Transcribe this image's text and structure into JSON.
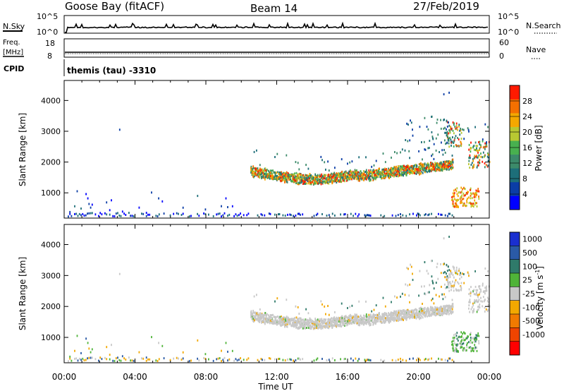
{
  "header": {
    "site": "Goose Bay (fitACF)",
    "beam": "Beam 14",
    "date": "27/Feb/2019"
  },
  "strips": {
    "nsky": {
      "label": "N.Sky",
      "tick_top": "10^5",
      "tick_bottom": "10^0",
      "right_label": "N.Search",
      "right_tick_top": "10^5",
      "right_tick_bottom": "10^0"
    },
    "freq": {
      "label_top": "Freq.",
      "label_unit": "[MHz]",
      "tick_top": "18",
      "tick_bottom": "8",
      "right_label": "Nave",
      "right_tick_top": "60",
      "right_tick_bottom": "0"
    },
    "cpid": {
      "label": "CPID",
      "value": "themis (tau) -3310"
    }
  },
  "colors": {
    "power": [
      "#0000ff",
      "#0b3da6",
      "#1d6e79",
      "#3c8a6a",
      "#48b04f",
      "#b8c832",
      "#f4a800",
      "#f47000",
      "#ff1a00"
    ],
    "velocity": [
      "#1a2fd0",
      "#2a5aa6",
      "#2f7a6a",
      "#4fb438",
      "#c8c8c8",
      "#f2a800",
      "#f07a00",
      "#ef4400",
      "#ff0000"
    ]
  },
  "chart_data": [
    {
      "type": "heatmap",
      "panel": "power",
      "ylabel": "Slant Range [km]",
      "yticks": [
        "1000",
        "2000",
        "3000",
        "4000"
      ],
      "ylim": [
        180,
        4650
      ],
      "xlim": [
        0,
        24
      ],
      "colorbar_label": "Power [dB]",
      "colorbar_ticks": [
        "4",
        "8",
        "12",
        "16",
        "20",
        "24",
        "28"
      ],
      "colorbar_range": [
        0,
        32
      ]
    },
    {
      "type": "heatmap",
      "panel": "velocity",
      "ylabel": "Slant Range [km]",
      "yticks": [
        "1000",
        "2000",
        "3000",
        "4000"
      ],
      "ylim": [
        180,
        4650
      ],
      "xlim": [
        0,
        24
      ],
      "colorbar_label": "Velocity [m s",
      "colorbar_label_sup": "-1",
      "colorbar_label_end": "]",
      "colorbar_ticks": [
        "1000",
        "500",
        "100",
        "25",
        "-25",
        "-100",
        "-500",
        "-1000"
      ]
    }
  ],
  "xaxis": {
    "ticks": [
      "00:00",
      "04:00",
      "08:00",
      "12:00",
      "16:00",
      "20:00",
      "00:00"
    ],
    "label": "Time UT"
  }
}
